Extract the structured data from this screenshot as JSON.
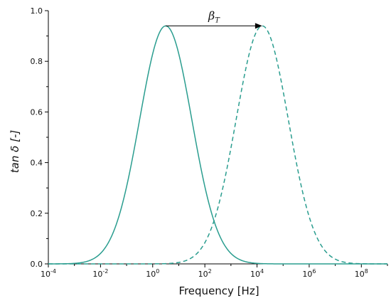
{
  "chart_data": {
    "type": "line",
    "xlabel": "Frequency [Hz]",
    "ylabel": "tan δ [-]",
    "xscale": "log",
    "xlim": [
      "1e-4",
      "1e9"
    ],
    "ylim": [
      0,
      1.0
    ],
    "grid": false,
    "legend": "none",
    "x_ticks": [
      {
        "value": "1e-4",
        "mantissa": "10",
        "exp": "-4"
      },
      {
        "value": "1e-2",
        "mantissa": "10",
        "exp": "-2"
      },
      {
        "value": "1e0",
        "mantissa": "10",
        "exp": "0"
      },
      {
        "value": "1e2",
        "mantissa": "10",
        "exp": "2"
      },
      {
        "value": "1e4",
        "mantissa": "10",
        "exp": "4"
      },
      {
        "value": "1e6",
        "mantissa": "10",
        "exp": "6"
      },
      {
        "value": "1e8",
        "mantissa": "10",
        "exp": "8"
      }
    ],
    "y_ticks": [
      "0.0",
      "0.2",
      "0.4",
      "0.6",
      "0.8",
      "1.0"
    ],
    "color": "#2a9d8f",
    "series": [
      {
        "style": "solid",
        "x": [
          "1e-4",
          "1e-3",
          "1e-2",
          "1e-1",
          "1e0",
          "1e1",
          "1e2",
          "1e3",
          "1e4",
          "1e5",
          "1e6",
          "1e7"
        ],
        "y": [
          0.005,
          0.04,
          0.2,
          0.58,
          0.93,
          0.85,
          0.45,
          0.12,
          0.015,
          0.001,
          0.0,
          0.0
        ]
      },
      {
        "style": "dashed",
        "x": [
          "1e0",
          "1e1",
          "1e2",
          "1e3",
          "1e4",
          "1e5",
          "1e6",
          "1e7",
          "1e8",
          "1e9"
        ],
        "y": [
          0.005,
          0.04,
          0.2,
          0.58,
          0.93,
          0.85,
          0.45,
          0.12,
          0.015,
          0.001
        ]
      }
    ],
    "peaks": {
      "solid_log10": 0.5,
      "dashed_log10": 4.2,
      "value": 0.94
    },
    "annotation": {
      "symbol": "β",
      "subscript": "T"
    }
  }
}
